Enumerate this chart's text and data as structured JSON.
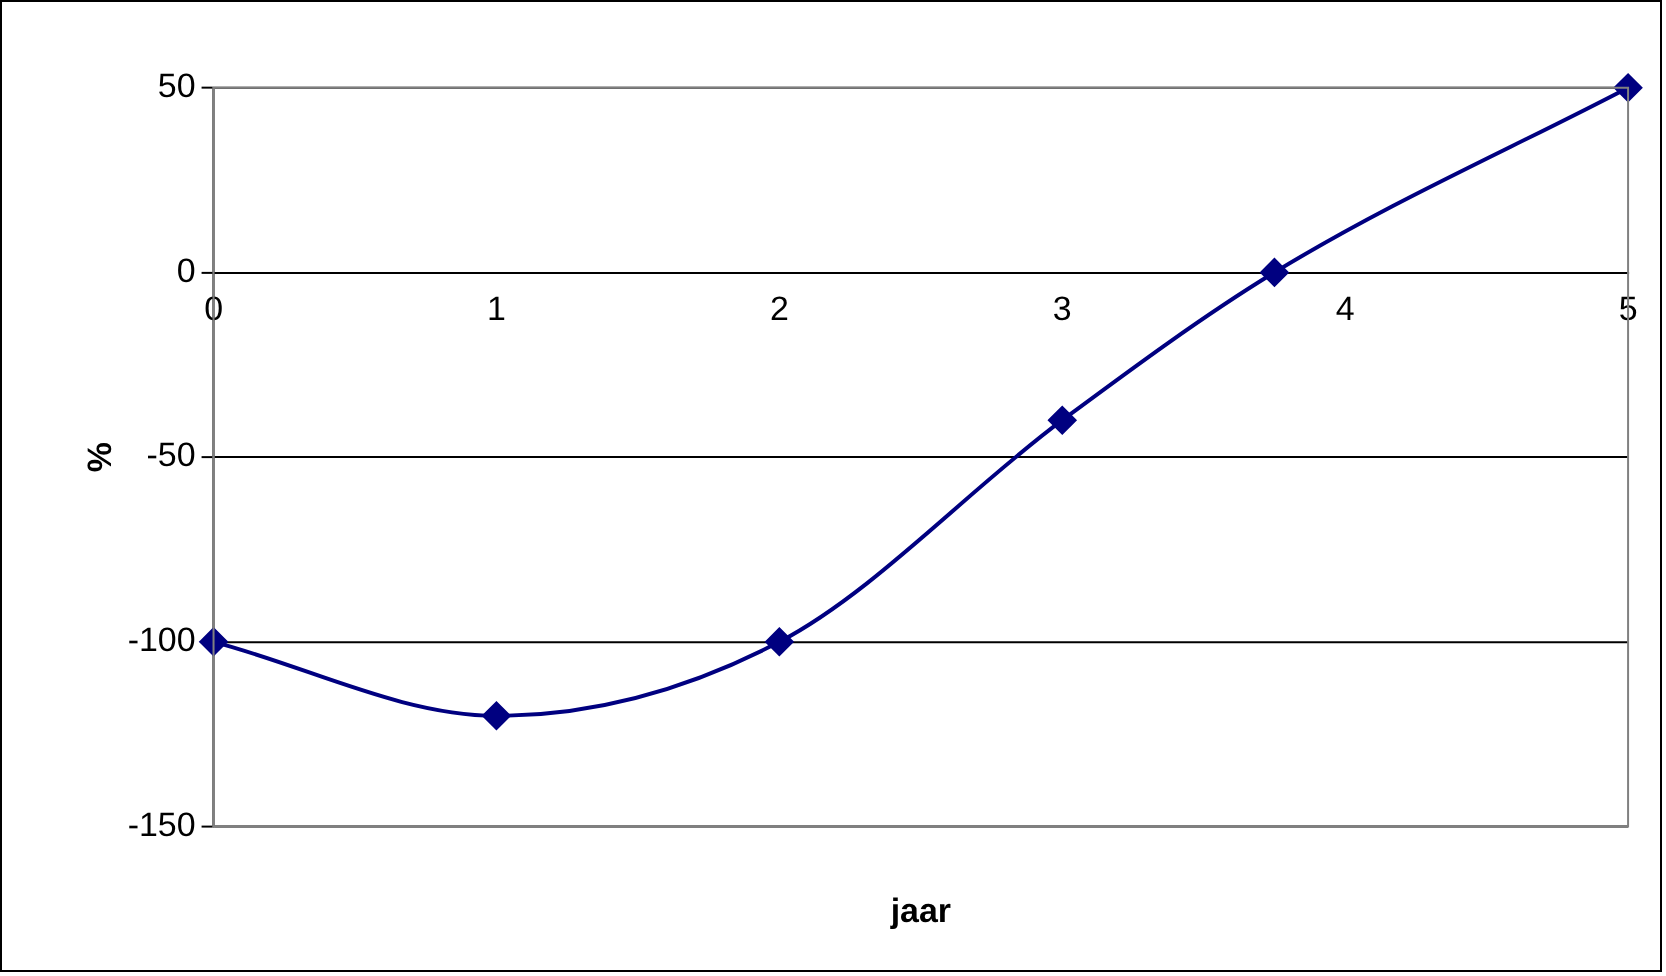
{
  "chart_data": {
    "type": "line",
    "xlabel": "jaar",
    "ylabel": "%",
    "x": [
      0,
      1,
      2,
      3,
      3.75,
      5
    ],
    "series": [
      {
        "color": "#000080",
        "values": [
          -100,
          -120,
          -100,
          -40,
          0,
          50
        ]
      }
    ],
    "xlim": [
      0,
      5
    ],
    "xticks": [
      0,
      1,
      2,
      3,
      4,
      5
    ],
    "ylim": [
      -150,
      50
    ],
    "yticks": [
      -150,
      -100,
      -50,
      0,
      50
    ],
    "grid": "y",
    "marker": "diamond",
    "line_style": "solid",
    "legend": false
  }
}
